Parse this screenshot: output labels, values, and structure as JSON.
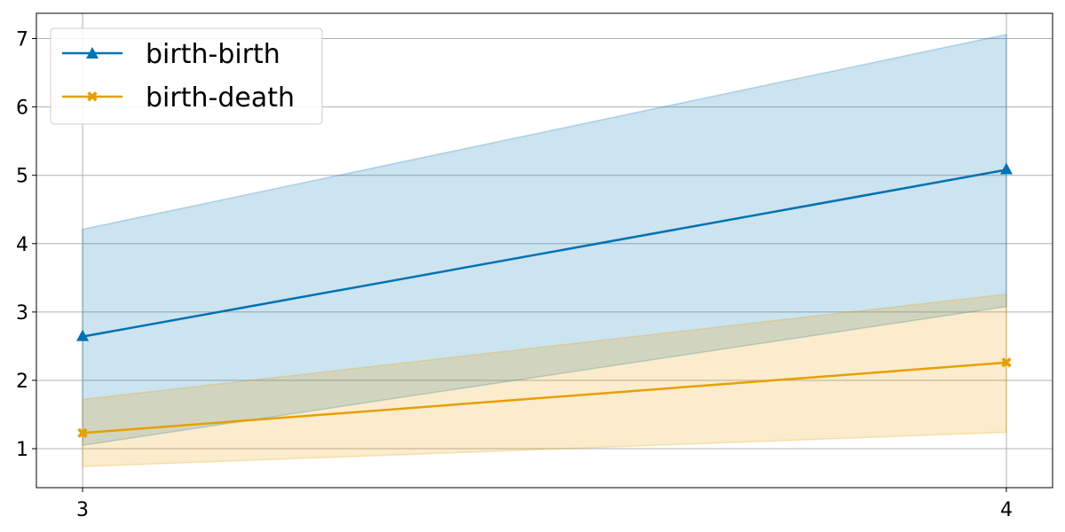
{
  "chart_data": {
    "type": "line",
    "title": "",
    "xlabel": "",
    "ylabel": "",
    "x": [
      3,
      4
    ],
    "xlim": [
      2.95,
      4.05
    ],
    "ylim": [
      0.43,
      7.37
    ],
    "xticks": [
      "3",
      "4"
    ],
    "yticks": [
      "1",
      "2",
      "3",
      "4",
      "5",
      "6",
      "7"
    ],
    "grid": true,
    "legend_position": "top-left",
    "series": [
      {
        "name": "birth-birth",
        "values": [
          2.64,
          5.08
        ],
        "band_lower": [
          1.05,
          3.08
        ],
        "band_upper": [
          4.21,
          7.06
        ],
        "color": "#0072b2",
        "marker": "triangle"
      },
      {
        "name": "birth-death",
        "values": [
          1.23,
          2.26
        ],
        "band_lower": [
          0.74,
          1.24
        ],
        "band_upper": [
          1.72,
          3.26
        ],
        "color": "#e69f00",
        "marker": "x"
      }
    ]
  }
}
